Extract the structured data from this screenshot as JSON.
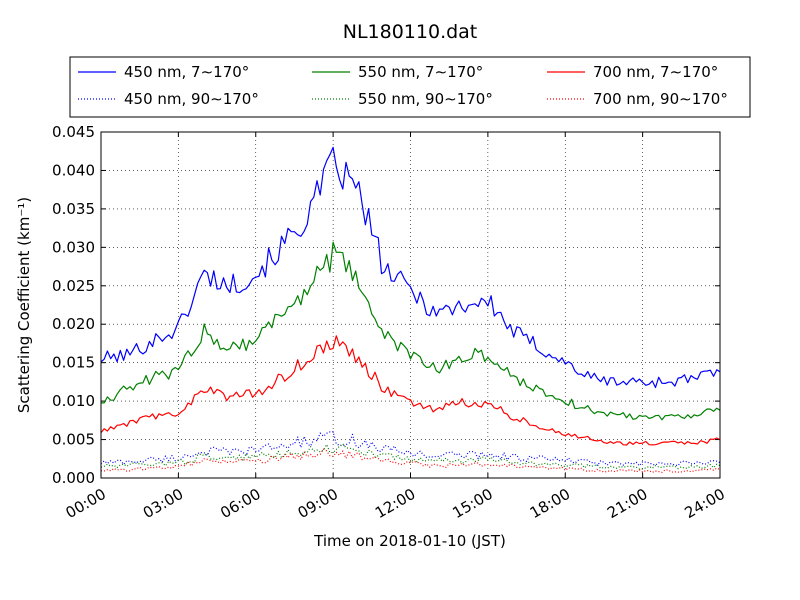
{
  "chart_data": {
    "type": "line",
    "title": "NL180110.dat",
    "xlabel": "Time on 2018-01-10 (JST)",
    "ylabel": "Scattering Coefficient (km⁻¹)",
    "xlim": [
      "00:00",
      "24:00"
    ],
    "ylim": [
      0.0,
      0.045
    ],
    "x_ticks": [
      "00:00",
      "03:00",
      "06:00",
      "09:00",
      "12:00",
      "15:00",
      "18:00",
      "21:00",
      "24:00"
    ],
    "y_ticks": [
      "0.000",
      "0.005",
      "0.010",
      "0.015",
      "0.020",
      "0.025",
      "0.030",
      "0.035",
      "0.040",
      "0.045"
    ],
    "grid": true,
    "legend_position": "top",
    "x": [
      "00:00",
      "01:00",
      "02:00",
      "03:00",
      "04:00",
      "05:00",
      "06:00",
      "07:00",
      "08:00",
      "09:00",
      "10:00",
      "11:00",
      "12:00",
      "13:00",
      "14:00",
      "15:00",
      "16:00",
      "17:00",
      "18:00",
      "19:00",
      "20:00",
      "21:00",
      "22:00",
      "23:00",
      "24:00"
    ],
    "series": [
      {
        "name": "450 nm, 7∼170°",
        "color": "#0000ff",
        "style": "solid",
        "values": [
          0.0155,
          0.016,
          0.0178,
          0.0195,
          0.0265,
          0.025,
          0.0265,
          0.03,
          0.034,
          0.041,
          0.037,
          0.027,
          0.0245,
          0.0215,
          0.0225,
          0.023,
          0.019,
          0.017,
          0.015,
          0.013,
          0.0125,
          0.0125,
          0.0125,
          0.013,
          0.0138
        ]
      },
      {
        "name": "450 nm, 90∼170°",
        "color": "#0000ff",
        "style": "dotted",
        "values": [
          0.002,
          0.0021,
          0.0024,
          0.0026,
          0.0035,
          0.0033,
          0.0036,
          0.0042,
          0.0048,
          0.0052,
          0.0047,
          0.0037,
          0.0033,
          0.0029,
          0.003,
          0.0031,
          0.0027,
          0.0025,
          0.0023,
          0.002,
          0.0019,
          0.0018,
          0.0018,
          0.0019,
          0.002
        ]
      },
      {
        "name": "550 nm, 7∼170°",
        "color": "#008000",
        "style": "solid",
        "values": [
          0.01,
          0.0115,
          0.013,
          0.014,
          0.019,
          0.017,
          0.018,
          0.0215,
          0.0245,
          0.029,
          0.0255,
          0.0185,
          0.016,
          0.014,
          0.0158,
          0.016,
          0.013,
          0.0115,
          0.01,
          0.0088,
          0.0082,
          0.008,
          0.008,
          0.0083,
          0.0088
        ]
      },
      {
        "name": "550 nm, 90∼170°",
        "color": "#008000",
        "style": "dotted",
        "values": [
          0.0015,
          0.0016,
          0.0018,
          0.002,
          0.0028,
          0.0026,
          0.0028,
          0.0032,
          0.0036,
          0.004,
          0.0036,
          0.0028,
          0.0025,
          0.0022,
          0.0023,
          0.0024,
          0.002,
          0.0019,
          0.0017,
          0.0015,
          0.0014,
          0.0014,
          0.0014,
          0.0015,
          0.0016
        ]
      },
      {
        "name": "700 nm, 7∼170°",
        "color": "#ff0000",
        "style": "solid",
        "values": [
          0.006,
          0.007,
          0.008,
          0.0085,
          0.0115,
          0.0105,
          0.011,
          0.013,
          0.0155,
          0.0178,
          0.0155,
          0.0115,
          0.0098,
          0.0088,
          0.0098,
          0.0098,
          0.0078,
          0.0068,
          0.0058,
          0.005,
          0.0045,
          0.0045,
          0.0045,
          0.0046,
          0.005
        ]
      },
      {
        "name": "700 nm, 90∼170°",
        "color": "#ff0000",
        "style": "dotted",
        "values": [
          0.001,
          0.0011,
          0.0013,
          0.0015,
          0.0022,
          0.002,
          0.0022,
          0.0026,
          0.003,
          0.0033,
          0.0029,
          0.0022,
          0.0019,
          0.0016,
          0.0017,
          0.0018,
          0.0015,
          0.0013,
          0.0012,
          0.001,
          0.0009,
          0.0009,
          0.0009,
          0.001,
          0.0011
        ]
      }
    ]
  }
}
